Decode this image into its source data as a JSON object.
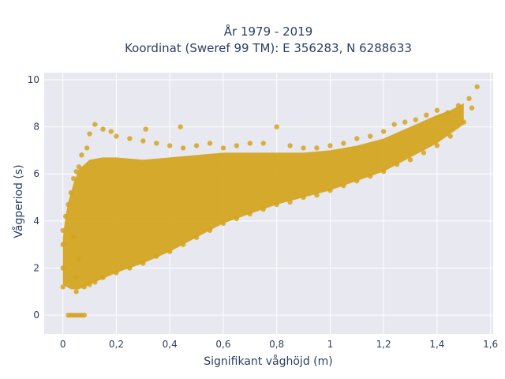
{
  "chart_data": {
    "type": "scatter",
    "title_line1": "År 1979 - 2019",
    "title_line2": "Koordinat (Sweref 99 TM): E 356283, N 6288633",
    "xlabel": "Signifikant våghöjd (m)",
    "ylabel": "Vågperiod (s)",
    "xlim": [
      -0.07,
      1.61
    ],
    "ylim": [
      -0.8,
      10.3
    ],
    "xticks": [
      0,
      0.2,
      0.4,
      0.6,
      0.8,
      1,
      1.2,
      1.4,
      1.6
    ],
    "xtick_labels": [
      "0",
      "0,2",
      "0,4",
      "0,6",
      "0,8",
      "1",
      "1,2",
      "1,4",
      "1,6"
    ],
    "yticks": [
      0,
      2,
      4,
      6,
      8,
      10
    ],
    "ytick_labels": [
      "0",
      "2",
      "4",
      "6",
      "8",
      "10"
    ],
    "grid": true,
    "marker_color": "#d4a520",
    "plot_bg": "#e8e8f0",
    "series": [
      {
        "points": [
          [
            0.02,
            0.0
          ],
          [
            0.03,
            0.0
          ],
          [
            0.04,
            0.0
          ],
          [
            0.05,
            0.0
          ],
          [
            0.06,
            0.0
          ],
          [
            0.07,
            0.0
          ],
          [
            0.08,
            0.0
          ],
          [
            0.0,
            1.2
          ],
          [
            0.0,
            2.0
          ],
          [
            0.0,
            3.0
          ],
          [
            0.0,
            3.6
          ],
          [
            0.01,
            4.2
          ],
          [
            0.02,
            4.7
          ],
          [
            0.03,
            5.2
          ],
          [
            0.04,
            5.8
          ],
          [
            0.05,
            6.1
          ],
          [
            0.06,
            6.3
          ],
          [
            0.05,
            1.0
          ],
          [
            0.08,
            1.2
          ],
          [
            0.1,
            1.3
          ],
          [
            0.12,
            1.4
          ],
          [
            0.15,
            1.6
          ],
          [
            0.2,
            1.8
          ],
          [
            0.25,
            2.0
          ],
          [
            0.3,
            2.2
          ],
          [
            0.35,
            2.5
          ],
          [
            0.4,
            2.7
          ],
          [
            0.45,
            3.0
          ],
          [
            0.5,
            3.3
          ],
          [
            0.55,
            3.6
          ],
          [
            0.6,
            3.9
          ],
          [
            0.65,
            4.1
          ],
          [
            0.7,
            4.3
          ],
          [
            0.75,
            4.5
          ],
          [
            0.8,
            4.7
          ],
          [
            0.85,
            4.8
          ],
          [
            0.9,
            5.0
          ],
          [
            0.95,
            5.1
          ],
          [
            1.0,
            5.3
          ],
          [
            1.05,
            5.5
          ],
          [
            1.1,
            5.7
          ],
          [
            1.15,
            5.9
          ],
          [
            1.2,
            6.1
          ],
          [
            1.25,
            6.4
          ],
          [
            1.3,
            6.6
          ],
          [
            1.35,
            6.9
          ],
          [
            1.4,
            7.2
          ],
          [
            1.45,
            7.6
          ],
          [
            1.5,
            8.2
          ],
          [
            1.53,
            8.8
          ],
          [
            1.55,
            9.7
          ],
          [
            1.52,
            9.2
          ],
          [
            1.48,
            8.9
          ],
          [
            1.44,
            8.6
          ],
          [
            1.4,
            8.7
          ],
          [
            1.36,
            8.5
          ],
          [
            1.32,
            8.3
          ],
          [
            1.28,
            8.2
          ],
          [
            1.24,
            8.1
          ],
          [
            1.2,
            7.8
          ],
          [
            1.15,
            7.6
          ],
          [
            1.1,
            7.5
          ],
          [
            1.05,
            7.3
          ],
          [
            1.0,
            7.2
          ],
          [
            0.95,
            7.1
          ],
          [
            0.9,
            7.1
          ],
          [
            0.85,
            7.2
          ],
          [
            0.8,
            8.0
          ],
          [
            0.75,
            7.3
          ],
          [
            0.7,
            7.3
          ],
          [
            0.65,
            7.2
          ],
          [
            0.6,
            7.1
          ],
          [
            0.55,
            7.3
          ],
          [
            0.5,
            7.2
          ],
          [
            0.45,
            7.1
          ],
          [
            0.44,
            8.0
          ],
          [
            0.4,
            7.2
          ],
          [
            0.35,
            7.3
          ],
          [
            0.31,
            7.9
          ],
          [
            0.3,
            7.4
          ],
          [
            0.25,
            7.5
          ],
          [
            0.2,
            7.6
          ],
          [
            0.18,
            7.8
          ],
          [
            0.15,
            7.9
          ],
          [
            0.12,
            8.1
          ],
          [
            0.1,
            7.7
          ],
          [
            0.09,
            7.1
          ],
          [
            0.07,
            6.8
          ],
          [
            0.05,
            1.6
          ],
          [
            0.06,
            2.4
          ],
          [
            0.04,
            3.3
          ]
        ]
      }
    ]
  }
}
